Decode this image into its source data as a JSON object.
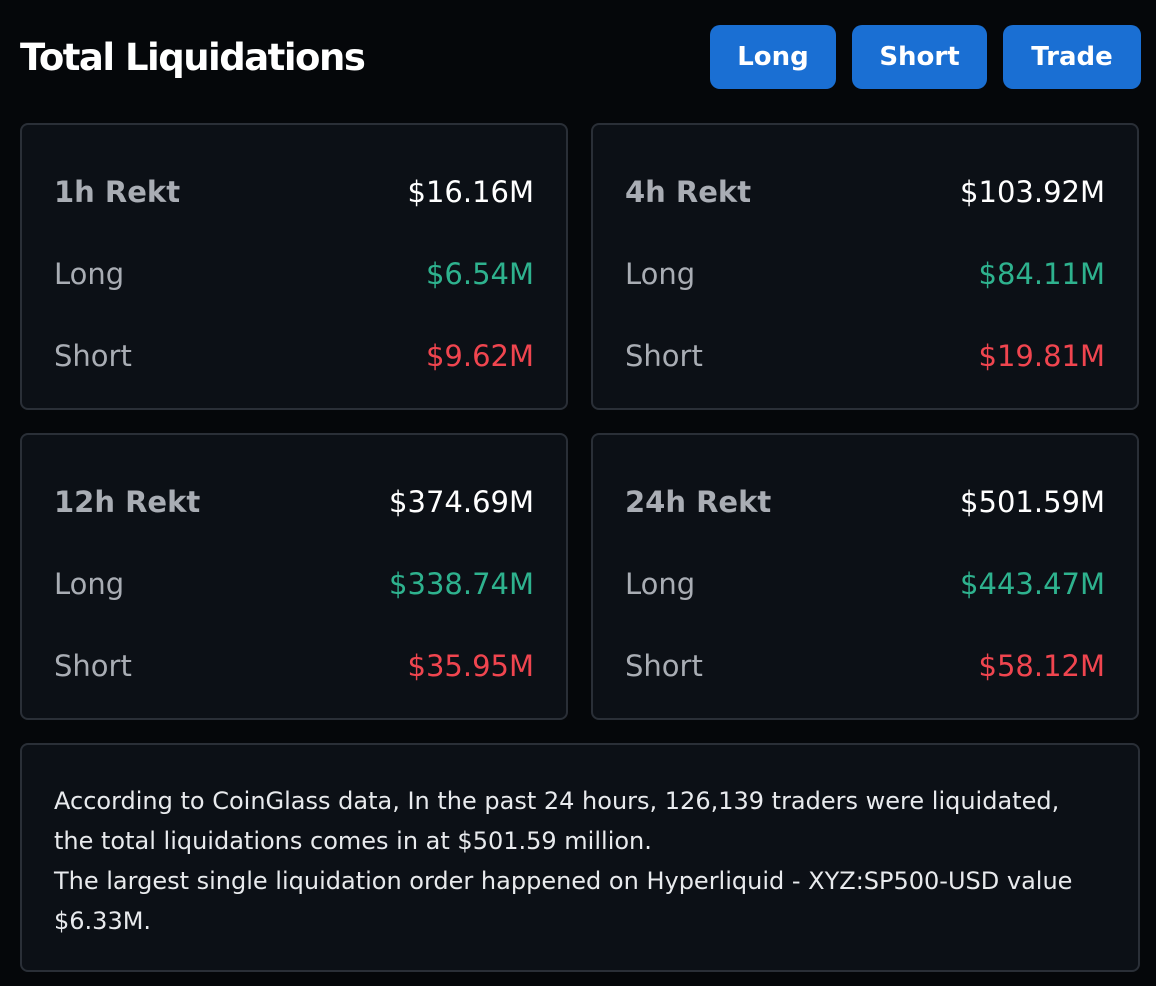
{
  "header": {
    "title": "Total Liquidations",
    "buttons": {
      "long": "Long",
      "short": "Short",
      "trade": "Trade"
    }
  },
  "cards": [
    {
      "title": "1h Rekt",
      "total": "$16.16M",
      "long_label": "Long",
      "long_value": "$6.54M",
      "short_label": "Short",
      "short_value": "$9.62M"
    },
    {
      "title": "4h Rekt",
      "total": "$103.92M",
      "long_label": "Long",
      "long_value": "$84.11M",
      "short_label": "Short",
      "short_value": "$19.81M"
    },
    {
      "title": "12h Rekt",
      "total": "$374.69M",
      "long_label": "Long",
      "long_value": "$338.74M",
      "short_label": "Short",
      "short_value": "$35.95M"
    },
    {
      "title": "24h Rekt",
      "total": "$501.59M",
      "long_label": "Long",
      "long_value": "$443.47M",
      "short_label": "Short",
      "short_value": "$58.12M"
    }
  ],
  "summary": {
    "line1": "According to CoinGlass data, In the past 24 hours, 126,139 traders were liquidated, the total liquidations comes in at $501.59 million.",
    "line2": "The largest single liquidation order happened on Hyperliquid - XYZ:SP500-USD value $6.33M."
  },
  "colors": {
    "background": "#05070a",
    "card_bg": "#0c1016",
    "card_border": "#2a2f37",
    "button": "#1a6fd3",
    "long": "#2eb28e",
    "short": "#f0454f",
    "label": "#a9adb4"
  }
}
